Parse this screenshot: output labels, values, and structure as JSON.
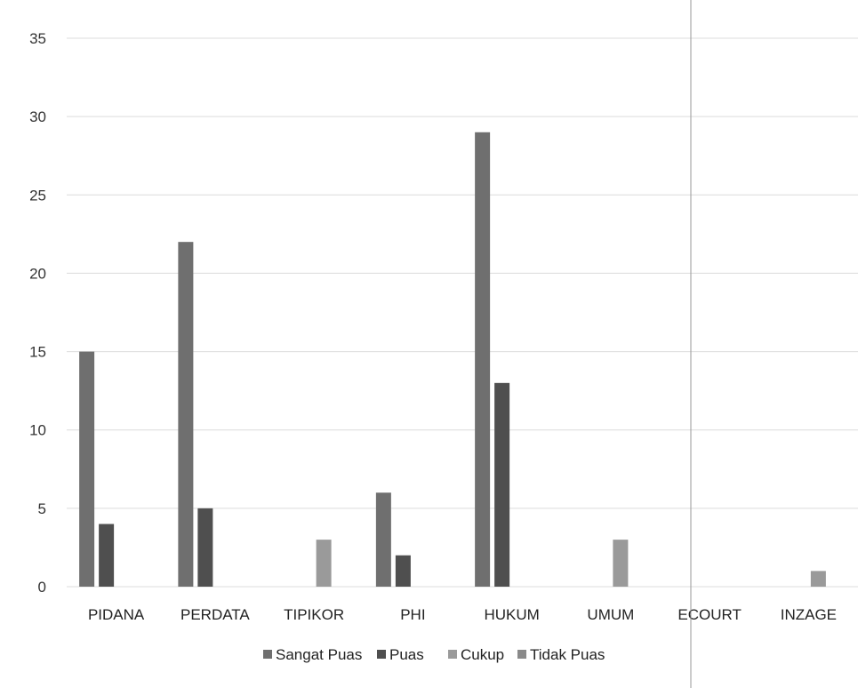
{
  "chart_data": {
    "type": "bar",
    "title": "",
    "xlabel": "",
    "ylabel": "",
    "ylim": [
      0,
      35
    ],
    "yticks": [
      0,
      5,
      10,
      15,
      20,
      25,
      30,
      35
    ],
    "grid": true,
    "legend_position": "bottom",
    "categories": [
      "PIDANA",
      "PERDATA",
      "TIPIKOR",
      "PHI",
      "HUKUM",
      "UMUM",
      "ECOURT",
      "INZAGE"
    ],
    "series": [
      {
        "name": "Sangat Puas",
        "color": "#6f6f6f",
        "values": [
          15,
          22,
          0,
          6,
          29,
          0,
          0,
          0
        ]
      },
      {
        "name": "Puas",
        "color": "#4f4f4f",
        "values": [
          4,
          5,
          0,
          2,
          13,
          0,
          0,
          0
        ]
      },
      {
        "name": "Cukup",
        "color": "#9a9a9a",
        "values": [
          0,
          0,
          3,
          0,
          0,
          3,
          0,
          1
        ]
      },
      {
        "name": "Tidak Puas",
        "color": "#8a8a8a",
        "values": [
          0,
          0,
          0,
          0,
          0,
          0,
          0,
          0
        ]
      }
    ]
  }
}
